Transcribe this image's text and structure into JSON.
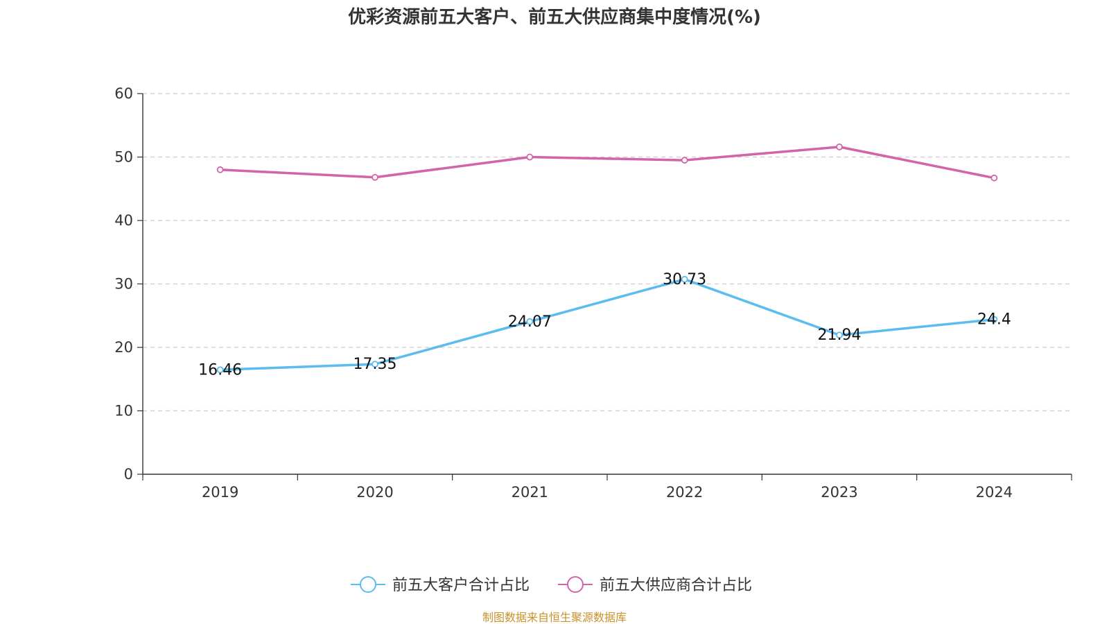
{
  "chart_data": {
    "type": "line",
    "title": "优彩资源前五大客户、前五大供应商集中度情况(%)",
    "categories": [
      "2019",
      "2020",
      "2021",
      "2022",
      "2023",
      "2024"
    ],
    "ylim": [
      0,
      60
    ],
    "yticks": [
      0,
      10,
      20,
      30,
      40,
      50,
      60
    ],
    "grid": true,
    "legend_position": "bottom",
    "series": [
      {
        "name": "前五大客户合计占比",
        "color": "#5bbcf0",
        "values": [
          16.46,
          17.35,
          24.07,
          30.73,
          21.94,
          24.4
        ],
        "labels": [
          "16.46",
          "17.35",
          "24.07",
          "30.73",
          "21.94",
          "24.4"
        ],
        "show_labels": true
      },
      {
        "name": "前五大供应商合计占比",
        "color": "#d264a8",
        "values": [
          48.0,
          46.8,
          50.0,
          49.5,
          51.6,
          46.7
        ],
        "show_labels": false
      }
    ]
  },
  "footer": {
    "source": "制图数据来自恒生聚源数据库"
  }
}
